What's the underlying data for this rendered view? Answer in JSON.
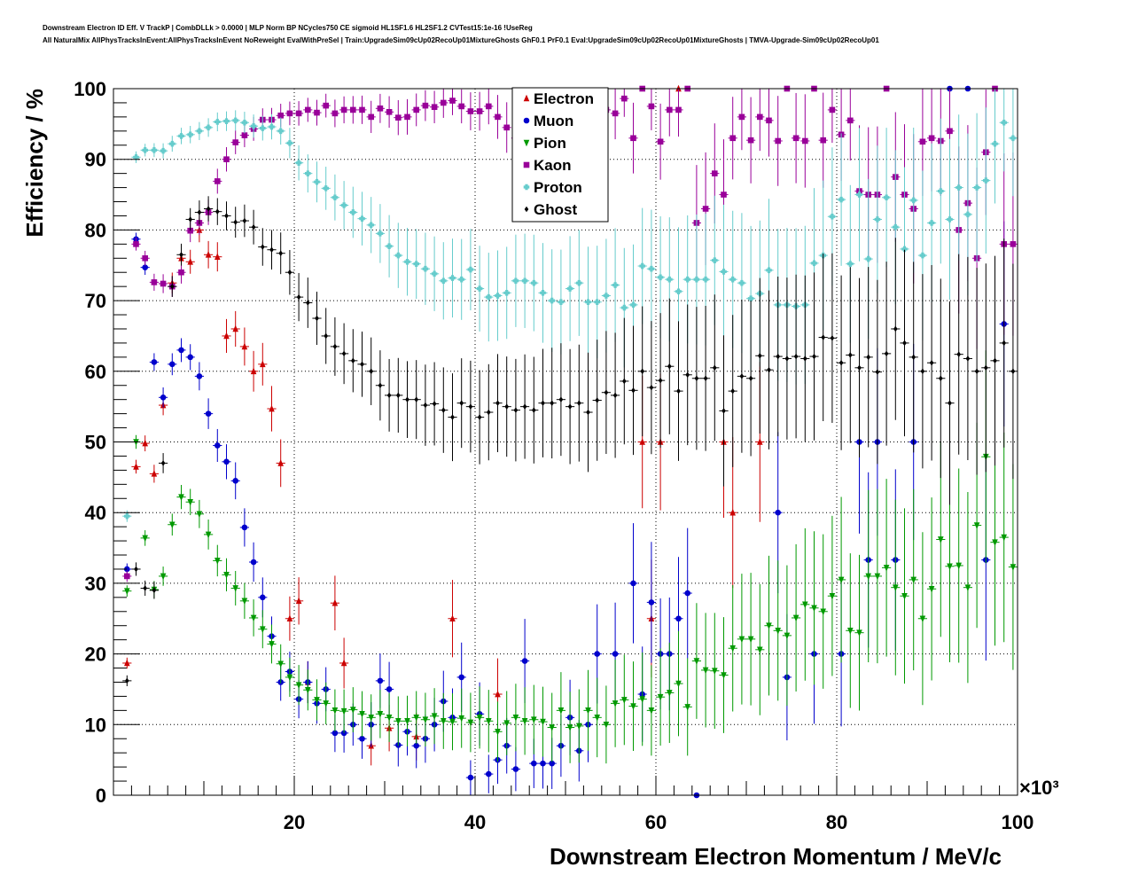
{
  "titles": {
    "line1": "Downstream Electron ID Eff. V TrackP | CombDLLk > 0.0000 | MLP Norm BP NCycles750 CE sigmoid HL1SF1.6 HL2SF1.2 CVTest15:1e-16 !UseReg",
    "line2": "All NaturalMix AllPhysTracksInEvent:AllPhysTracksInEvent NoReweight EvalWithPreSel | Train:UpgradeSim09cUp02RecoUp01MixtureGhosts GhF0.1 PrF0.1 Eval:UpgradeSim09cUp02RecoUp01MixtureGhosts | TMVA-Upgrade-Sim09cUp02RecoUp01"
  },
  "chart_data": {
    "type": "scatter",
    "xlabel": "Downstream Electron Momentum / MeV/c",
    "ylabel": "Efficiency / %",
    "x_multiplier": "×10³",
    "xlim": [
      0,
      100
    ],
    "ylim": [
      0,
      100
    ],
    "x_ticks": [
      20,
      40,
      60,
      80,
      100
    ],
    "y_ticks": [
      0,
      10,
      20,
      30,
      40,
      50,
      60,
      70,
      80,
      90,
      100
    ],
    "grid": true,
    "legend_position": "top-center",
    "series": [
      {
        "name": "Electron",
        "marker": "triangle-up",
        "color": "#cc0000",
        "x": [
          1.5,
          2.5,
          3.5,
          4.5,
          5.5,
          6.5,
          7.5,
          8.5,
          9.5,
          10.5,
          11.5,
          12.5,
          13.5,
          14.5,
          15.5,
          16.5,
          17.5,
          18.5,
          19.5,
          20.5,
          21.5,
          24.5,
          25.5,
          28.5,
          30.5,
          33.5,
          37.5,
          42.5,
          58.5,
          59.5,
          60.5,
          62.5,
          67.5,
          68.5,
          71.5
        ],
        "y": [
          18.7,
          46.5,
          49.8,
          45.5,
          55.2,
          72.5,
          76.0,
          75.5,
          80.0,
          76.5,
          76.2,
          65.0,
          66.0,
          63.5,
          60.0,
          61.0,
          54.7,
          47.0,
          25.0,
          27.5,
          16.0,
          27.2,
          18.7,
          7.0,
          9.5,
          8.3,
          25.0,
          14.3,
          50.0,
          25.0,
          50.0,
          100.0,
          50.0,
          40.0,
          50.0
        ]
      },
      {
        "name": "Muon",
        "marker": "circle",
        "color": "#0000cc",
        "x": [
          1.5,
          2.5,
          3.5,
          4.5,
          5.5,
          6.5,
          7.5,
          8.5,
          9.5,
          10.5,
          11.5,
          12.5,
          13.5,
          14.5,
          15.5,
          16.5,
          17.5,
          18.5,
          19.5,
          20.5,
          21.5,
          22.5,
          23.5,
          24.5,
          25.5,
          26.5,
          27.5,
          28.5,
          29.5,
          30.5,
          31.5,
          32.5,
          33.5,
          34.5,
          35.5,
          36.5,
          37.5,
          38.5,
          39.5,
          40.5,
          41.5,
          42.5,
          43.5,
          44.5,
          45.5,
          46.5,
          47.5,
          48.5,
          49.5,
          50.5,
          51.5,
          52.5,
          53.5,
          55.5,
          57.5,
          58.5,
          59.5,
          60.5,
          61.5,
          62.5,
          63.5,
          64.5,
          73.5,
          74.5,
          77.5,
          80.5,
          82.5,
          83.5,
          84.5,
          86.5,
          88.5,
          92.5,
          94.5,
          96.5,
          98.5
        ],
        "y": [
          32.0,
          78.7,
          74.7,
          61.3,
          56.3,
          61.0,
          63.0,
          62.0,
          59.3,
          54.0,
          49.5,
          47.2,
          44.5,
          37.9,
          33.0,
          28.0,
          22.5,
          16.0,
          17.5,
          13.6,
          16.0,
          13.0,
          15.0,
          8.8,
          8.8,
          10.0,
          8.0,
          10.0,
          16.2,
          15.0,
          7.1,
          9.0,
          7.0,
          8.0,
          10.0,
          13.3,
          11.0,
          16.7,
          2.5,
          11.5,
          3.0,
          5.0,
          7.0,
          3.7,
          19.0,
          4.5,
          4.5,
          4.5,
          7.0,
          11.0,
          6.3,
          10.0,
          20.0,
          20.0,
          30.0,
          14.3,
          27.3,
          20.0,
          20.0,
          25.0,
          28.6,
          0.0,
          40.0,
          16.7,
          20.0,
          20.0,
          50.0,
          33.3,
          50.0,
          33.3,
          50.0,
          100.0,
          100.0,
          33.3,
          66.7
        ]
      },
      {
        "name": "Pion",
        "marker": "triangle-down",
        "color": "#009900",
        "x": [
          1.5,
          2.5,
          3.5,
          4.5,
          5.5,
          6.5,
          7.5,
          8.5,
          9.5,
          10.5,
          11.5,
          12.5,
          13.5,
          14.5,
          15.5,
          16.5,
          17.5,
          18.5,
          19.5,
          20.5,
          21.5,
          22.5,
          23.5,
          24.5,
          25.5,
          26.5,
          27.5,
          28.5,
          29.5,
          30.5,
          31.5,
          32.5,
          33.5,
          34.5,
          35.5,
          36.5,
          37.5,
          38.5,
          39.5,
          40.5,
          41.5,
          42.5,
          43.5,
          44.5,
          45.5,
          46.5,
          47.5,
          48.5,
          49.5,
          50.5,
          51.5,
          52.5,
          53.5,
          54.5,
          55.5,
          56.5,
          57.5,
          58.5,
          59.5,
          60.5,
          61.5,
          62.5,
          63.5,
          64.5,
          65.5,
          66.5,
          67.5,
          68.5,
          69.5,
          70.5,
          71.5,
          72.5,
          73.5,
          74.5,
          75.5,
          76.5,
          77.5,
          78.5,
          79.5,
          80.5,
          81.5,
          82.5,
          83.5,
          84.5,
          85.5,
          86.5,
          87.5,
          88.5,
          89.5,
          90.5,
          91.5,
          92.5,
          93.5,
          94.5,
          95.5,
          96.5,
          97.5,
          98.5,
          99.5
        ],
        "y": [
          28.9,
          50.0,
          36.4,
          29.1,
          31.0,
          38.3,
          42.2,
          41.5,
          39.8,
          36.9,
          33.2,
          31.2,
          29.3,
          27.5,
          25.1,
          23.5,
          21.4,
          18.6,
          16.7,
          15.6,
          14.9,
          13.5,
          13.0,
          12.0,
          11.9,
          12.1,
          11.5,
          11.0,
          11.5,
          11.0,
          10.5,
          10.5,
          11.0,
          10.7,
          11.2,
          10.5,
          10.4,
          10.9,
          10.3,
          11.0,
          10.5,
          9.0,
          10.2,
          11.0,
          10.5,
          10.7,
          10.4,
          9.6,
          12.0,
          9.6,
          9.8,
          12.0,
          11.0,
          10.0,
          13.0,
          13.5,
          12.6,
          13.6,
          12.0,
          13.9,
          14.5,
          15.8,
          12.5,
          19.0,
          17.7,
          17.6,
          17.0,
          20.8,
          22.1,
          22.1,
          20.6,
          24.0,
          23.3,
          22.6,
          25.1,
          27.0,
          26.5,
          26.0,
          28.2,
          30.5,
          23.3,
          23.0,
          31.0,
          31.0,
          32.2,
          29.4,
          28.2,
          30.5,
          25.0,
          29.2,
          36.2,
          32.4,
          32.5,
          29.4,
          38.2,
          47.9,
          35.8,
          36.5,
          32.3
        ]
      },
      {
        "name": "Kaon",
        "marker": "square",
        "color": "#990099",
        "x": [
          1.5,
          2.5,
          3.5,
          4.5,
          5.5,
          6.5,
          7.5,
          8.5,
          9.5,
          10.5,
          11.5,
          12.5,
          13.5,
          14.5,
          15.5,
          16.5,
          17.5,
          18.5,
          19.5,
          20.5,
          21.5,
          22.5,
          23.5,
          24.5,
          25.5,
          26.5,
          27.5,
          28.5,
          29.5,
          30.5,
          31.5,
          32.5,
          33.5,
          34.5,
          35.5,
          36.5,
          37.5,
          38.5,
          39.5,
          40.5,
          41.5,
          42.5,
          43.5,
          44.5,
          45.5,
          46.5,
          47.5,
          48.5,
          49.5,
          50.5,
          51.5,
          52.5,
          53.5,
          54.5,
          55.5,
          56.5,
          57.5,
          58.5,
          59.5,
          60.5,
          61.5,
          62.5,
          63.5,
          64.5,
          65.5,
          66.5,
          67.5,
          68.5,
          69.5,
          70.5,
          71.5,
          72.5,
          73.5,
          74.5,
          75.5,
          76.5,
          77.5,
          78.5,
          79.5,
          80.5,
          81.5,
          82.5,
          83.5,
          84.5,
          85.5,
          86.5,
          87.5,
          88.5,
          89.5,
          90.5,
          91.5,
          92.5,
          93.5,
          94.5,
          95.5,
          96.5,
          97.5,
          98.5,
          99.5
        ],
        "y": [
          31.0,
          78.0,
          76.0,
          72.6,
          72.4,
          72.0,
          74.0,
          79.9,
          81.0,
          82.5,
          86.9,
          90.0,
          92.4,
          93.4,
          94.3,
          95.6,
          95.6,
          96.2,
          96.5,
          96.5,
          97.0,
          96.6,
          97.6,
          96.5,
          97.0,
          97.0,
          97.0,
          96.0,
          97.2,
          96.7,
          95.9,
          96.0,
          97.0,
          97.6,
          97.4,
          98.0,
          98.3,
          97.5,
          96.8,
          96.8,
          97.5,
          96.0,
          94.5,
          93.0,
          97.0,
          95.5,
          96.5,
          96.5,
          97.6,
          96.0,
          97.3,
          95.7,
          97.0,
          97.0,
          96.5,
          98.6,
          93.0,
          100.0,
          97.5,
          92.5,
          97.0,
          97.0,
          100.0,
          81.0,
          83.0,
          88.0,
          85.0,
          93.0,
          96.0,
          92.7,
          96.0,
          95.5,
          92.6,
          100.0,
          93.0,
          92.6,
          100.0,
          92.7,
          97.0,
          93.5,
          95.5,
          85.5,
          85.0,
          85.0,
          100.0,
          87.5,
          85.0,
          83.0,
          92.5,
          93.0,
          92.6,
          94.0,
          80.0,
          83.8,
          76.0,
          91.0,
          100.0,
          78.0,
          78.0
        ]
      },
      {
        "name": "Proton",
        "marker": "cross",
        "color": "#66cccc",
        "x": [
          1.5,
          2.5,
          3.5,
          4.5,
          5.5,
          6.5,
          7.5,
          8.5,
          9.5,
          10.5,
          11.5,
          12.5,
          13.5,
          14.5,
          15.5,
          16.5,
          17.5,
          18.5,
          19.5,
          20.5,
          21.5,
          22.5,
          23.5,
          24.5,
          25.5,
          26.5,
          27.5,
          28.5,
          29.5,
          30.5,
          31.5,
          32.5,
          33.5,
          34.5,
          35.5,
          36.5,
          37.5,
          38.5,
          39.5,
          40.5,
          41.5,
          42.5,
          43.5,
          44.5,
          45.5,
          46.5,
          47.5,
          48.5,
          49.5,
          50.5,
          51.5,
          52.5,
          53.5,
          54.5,
          55.5,
          56.5,
          57.5,
          58.5,
          59.5,
          60.5,
          61.5,
          62.5,
          63.5,
          64.5,
          65.5,
          66.5,
          67.5,
          68.5,
          69.5,
          70.5,
          71.5,
          72.5,
          73.5,
          74.5,
          75.5,
          76.5,
          77.5,
          78.5,
          79.5,
          80.5,
          81.5,
          82.5,
          83.5,
          84.5,
          85.5,
          86.5,
          87.5,
          88.5,
          89.5,
          90.5,
          91.5,
          92.5,
          93.5,
          94.5,
          95.5,
          96.5,
          97.5,
          98.5,
          99.5
        ],
        "y": [
          39.5,
          90.3,
          91.3,
          91.3,
          91.2,
          92.2,
          93.3,
          93.5,
          94.0,
          94.5,
          95.3,
          95.4,
          95.5,
          95.2,
          94.7,
          94.4,
          94.6,
          94.0,
          92.3,
          89.5,
          88.0,
          86.8,
          85.9,
          84.6,
          83.5,
          82.5,
          81.6,
          80.7,
          79.5,
          77.7,
          76.4,
          75.5,
          75.2,
          74.5,
          73.8,
          72.8,
          73.2,
          73.0,
          74.4,
          71.7,
          70.5,
          70.7,
          71.1,
          72.8,
          72.8,
          72.5,
          71.1,
          70.0,
          69.8,
          71.7,
          72.5,
          69.8,
          69.8,
          70.7,
          72.2,
          69.0,
          69.4,
          74.9,
          74.5,
          73.3,
          73.0,
          71.3,
          73.0,
          73.0,
          73.0,
          75.7,
          74.1,
          73.0,
          72.5,
          70.3,
          71.0,
          74.3,
          69.4,
          69.4,
          69.2,
          69.4,
          75.3,
          76.4,
          81.9,
          84.3,
          75.2,
          85.0,
          75.9,
          81.5,
          84.6,
          80.4,
          77.3,
          84.2,
          76.4,
          81.0,
          85.5,
          81.5,
          86.0,
          82.2,
          86.0,
          87.0,
          92.2,
          95.2,
          93.0
        ]
      },
      {
        "name": "Ghost",
        "marker": "diamond",
        "color": "#000000",
        "x": [
          1.5,
          2.5,
          3.5,
          4.5,
          5.5,
          6.5,
          7.5,
          8.5,
          9.5,
          10.5,
          11.5,
          12.5,
          13.5,
          14.5,
          15.5,
          16.5,
          17.5,
          18.5,
          19.5,
          20.5,
          21.5,
          22.5,
          23.5,
          24.5,
          25.5,
          26.5,
          27.5,
          28.5,
          29.5,
          30.5,
          31.5,
          32.5,
          33.5,
          34.5,
          35.5,
          36.5,
          37.5,
          38.5,
          39.5,
          40.5,
          41.5,
          42.5,
          43.5,
          44.5,
          45.5,
          46.5,
          47.5,
          48.5,
          49.5,
          50.5,
          51.5,
          52.5,
          53.5,
          54.5,
          55.5,
          56.5,
          57.5,
          58.5,
          59.5,
          60.5,
          61.5,
          62.5,
          63.5,
          64.5,
          65.5,
          66.5,
          67.5,
          68.5,
          69.5,
          70.5,
          71.5,
          72.5,
          73.5,
          74.5,
          75.5,
          76.5,
          77.5,
          78.5,
          79.5,
          80.5,
          81.5,
          82.5,
          83.5,
          84.5,
          85.5,
          86.5,
          87.5,
          88.5,
          89.5,
          90.5,
          91.5,
          92.5,
          93.5,
          94.5,
          95.5,
          96.5,
          97.5,
          98.5,
          99.5
        ],
        "y": [
          16.2,
          32.0,
          29.3,
          29.0,
          47.0,
          72.0,
          76.5,
          81.5,
          82.5,
          83.0,
          82.6,
          82.0,
          81.1,
          81.3,
          80.4,
          77.6,
          77.2,
          76.7,
          74.0,
          70.5,
          69.7,
          67.5,
          65.0,
          63.5,
          62.5,
          61.5,
          61.0,
          60.0,
          58.0,
          56.6,
          56.6,
          56.0,
          56.0,
          55.2,
          55.4,
          54.5,
          53.5,
          55.5,
          55.0,
          53.5,
          54.2,
          55.5,
          55.0,
          54.5,
          55.0,
          54.5,
          55.5,
          55.5,
          56.0,
          55.0,
          55.5,
          54.2,
          55.9,
          57.0,
          56.6,
          58.6,
          57.3,
          60.0,
          57.7,
          58.7,
          60.7,
          57.2,
          59.5,
          59.0,
          59.0,
          60.5,
          54.4,
          57.2,
          59.3,
          59.0,
          62.2,
          60.2,
          62.1,
          61.8,
          62.1,
          61.8,
          62.1,
          64.8,
          64.7,
          61.2,
          62.3,
          60.5,
          62.0,
          59.9,
          62.5,
          66.0,
          64.0,
          62.0,
          60.0,
          61.2,
          59.0,
          55.5,
          62.4,
          61.8,
          60.0,
          60.5,
          61.5,
          64.0,
          60.0
        ]
      }
    ]
  }
}
